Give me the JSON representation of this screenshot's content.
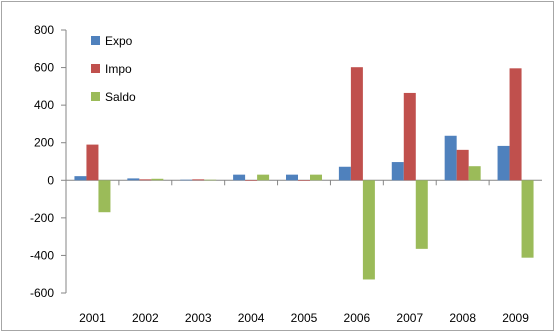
{
  "chart_data": {
    "type": "bar",
    "title": "",
    "xlabel": "",
    "ylabel": "",
    "categories": [
      "2001",
      "2002",
      "2003",
      "2004",
      "2005",
      "2006",
      "2007",
      "2008",
      "2009"
    ],
    "series": [
      {
        "name": "Expo",
        "color": "#4f81bd",
        "values": [
          22,
          10,
          3,
          30,
          30,
          72,
          97,
          237,
          183
        ]
      },
      {
        "name": "Impo",
        "color": "#c0504d",
        "values": [
          190,
          5,
          5,
          1,
          1,
          602,
          465,
          162,
          596
        ]
      },
      {
        "name": "Saldo",
        "color": "#9bbb59",
        "values": [
          -170,
          8,
          3,
          30,
          30,
          -528,
          -365,
          75,
          -412
        ]
      }
    ],
    "ylim": [
      -600,
      800
    ],
    "yticks": [
      -600,
      -400,
      -200,
      0,
      200,
      400,
      600,
      800
    ],
    "grid": false,
    "legend_position": "top-left"
  }
}
